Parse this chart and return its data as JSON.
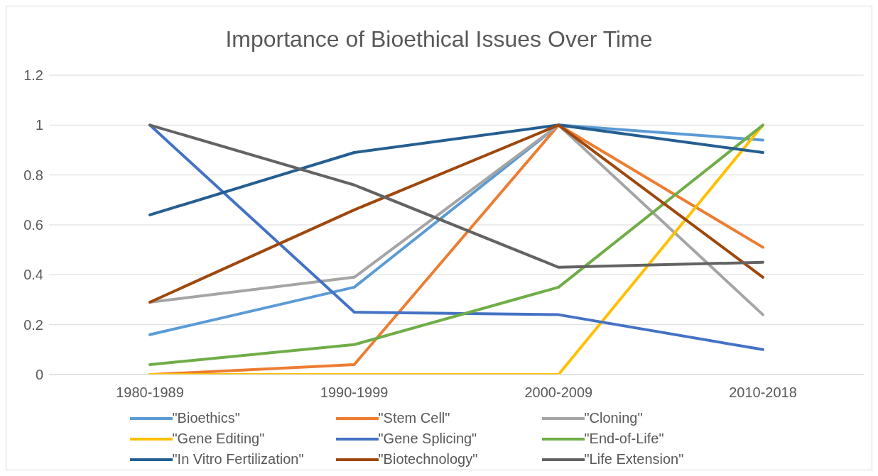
{
  "chart_data": {
    "type": "line",
    "title": "Importance of Bioethical Issues Over Time",
    "categories": [
      "1980-1989",
      "1990-1999",
      "2000-2009",
      "2010-2018"
    ],
    "series": [
      {
        "name": "\"Bioethics\"",
        "color": "#5b9bd5",
        "values": [
          0.16,
          0.35,
          1,
          0.94
        ]
      },
      {
        "name": "\"Stem Cell\"",
        "color": "#ed7d31",
        "values": [
          0,
          0.04,
          1,
          0.51
        ]
      },
      {
        "name": "\"Cloning\"",
        "color": "#a5a5a5",
        "values": [
          0.29,
          0.39,
          1,
          0.24
        ]
      },
      {
        "name": "\"Gene Editing\"",
        "color": "#ffc000",
        "values": [
          0,
          0,
          0,
          1
        ]
      },
      {
        "name": "\"Gene Splicing\"",
        "color": "#4472c4",
        "values": [
          1,
          0.25,
          0.24,
          0.1
        ]
      },
      {
        "name": "\"End-of-Life\"",
        "color": "#70ad47",
        "values": [
          0.04,
          0.12,
          0.35,
          1
        ]
      },
      {
        "name": "\"In Vitro Fertilization\"",
        "color": "#255e91",
        "values": [
          0.64,
          0.89,
          1,
          0.89
        ]
      },
      {
        "name": "\"Biotechnology\"",
        "color": "#9e480e",
        "values": [
          0.29,
          0.66,
          1,
          0.39
        ]
      },
      {
        "name": "\"Life Extension\"",
        "color": "#636363",
        "values": [
          1,
          0.76,
          0.43,
          0.45
        ]
      }
    ],
    "ylim": [
      0,
      1.2
    ],
    "yticks": [
      0,
      {
        "value": 0.2,
        "label": "0.2"
      },
      {
        "value": 0.4,
        "label": "0.4"
      },
      {
        "value": 0.6,
        "label": "0.6"
      },
      {
        "value": 0.8,
        "label": "0.8"
      },
      1,
      {
        "value": 1.2,
        "label": "1.2"
      }
    ],
    "grid": "y",
    "legend": "bottom",
    "marker": "none",
    "line_style": "solid"
  }
}
